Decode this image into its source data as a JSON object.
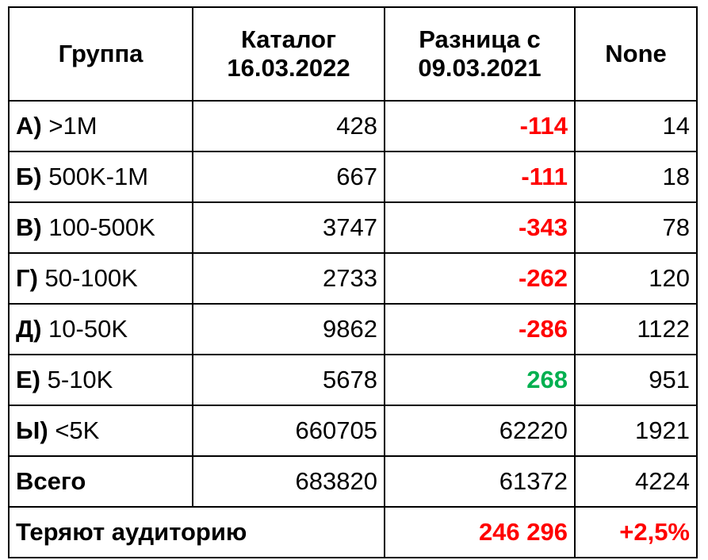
{
  "headers": {
    "group": "Группа",
    "catalog_line1": "Каталог",
    "catalog_line2": "16.03.2022",
    "diff_line1": "Разница с",
    "diff_line2": "09.03.2021",
    "none": "None"
  },
  "rows": [
    {
      "letter": "А)",
      "range": ">1M",
      "catalog": "428",
      "diff": "-114",
      "diff_color": "#ff0000",
      "none": "14"
    },
    {
      "letter": "Б)",
      "range": "500K-1M",
      "catalog": "667",
      "diff": "-111",
      "diff_color": "#ff0000",
      "none": "18"
    },
    {
      "letter": "В)",
      "range": "100-500K",
      "catalog": "3747",
      "diff": "-343",
      "diff_color": "#ff0000",
      "none": "78"
    },
    {
      "letter": "Г)",
      "range": "50-100K",
      "catalog": "2733",
      "diff": "-262",
      "diff_color": "#ff0000",
      "none": "120"
    },
    {
      "letter": "Д)",
      "range": "10-50K",
      "catalog": "9862",
      "diff": "-286",
      "diff_color": "#ff0000",
      "none": "1122"
    },
    {
      "letter": "Е)",
      "range": "5-10K",
      "catalog": "5678",
      "diff": "268",
      "diff_color": "#00b050",
      "none": "951"
    },
    {
      "letter": "Ы)",
      "range": "<5K",
      "catalog": "660705",
      "diff": "62220",
      "diff_color": "#000000",
      "none": "1921"
    }
  ],
  "total": {
    "label": "Всего",
    "catalog": "683820",
    "diff": "61372",
    "none": "4224"
  },
  "losing": {
    "label": "Теряют аудиторию",
    "diff": "246 296",
    "none": "+2,5%"
  }
}
